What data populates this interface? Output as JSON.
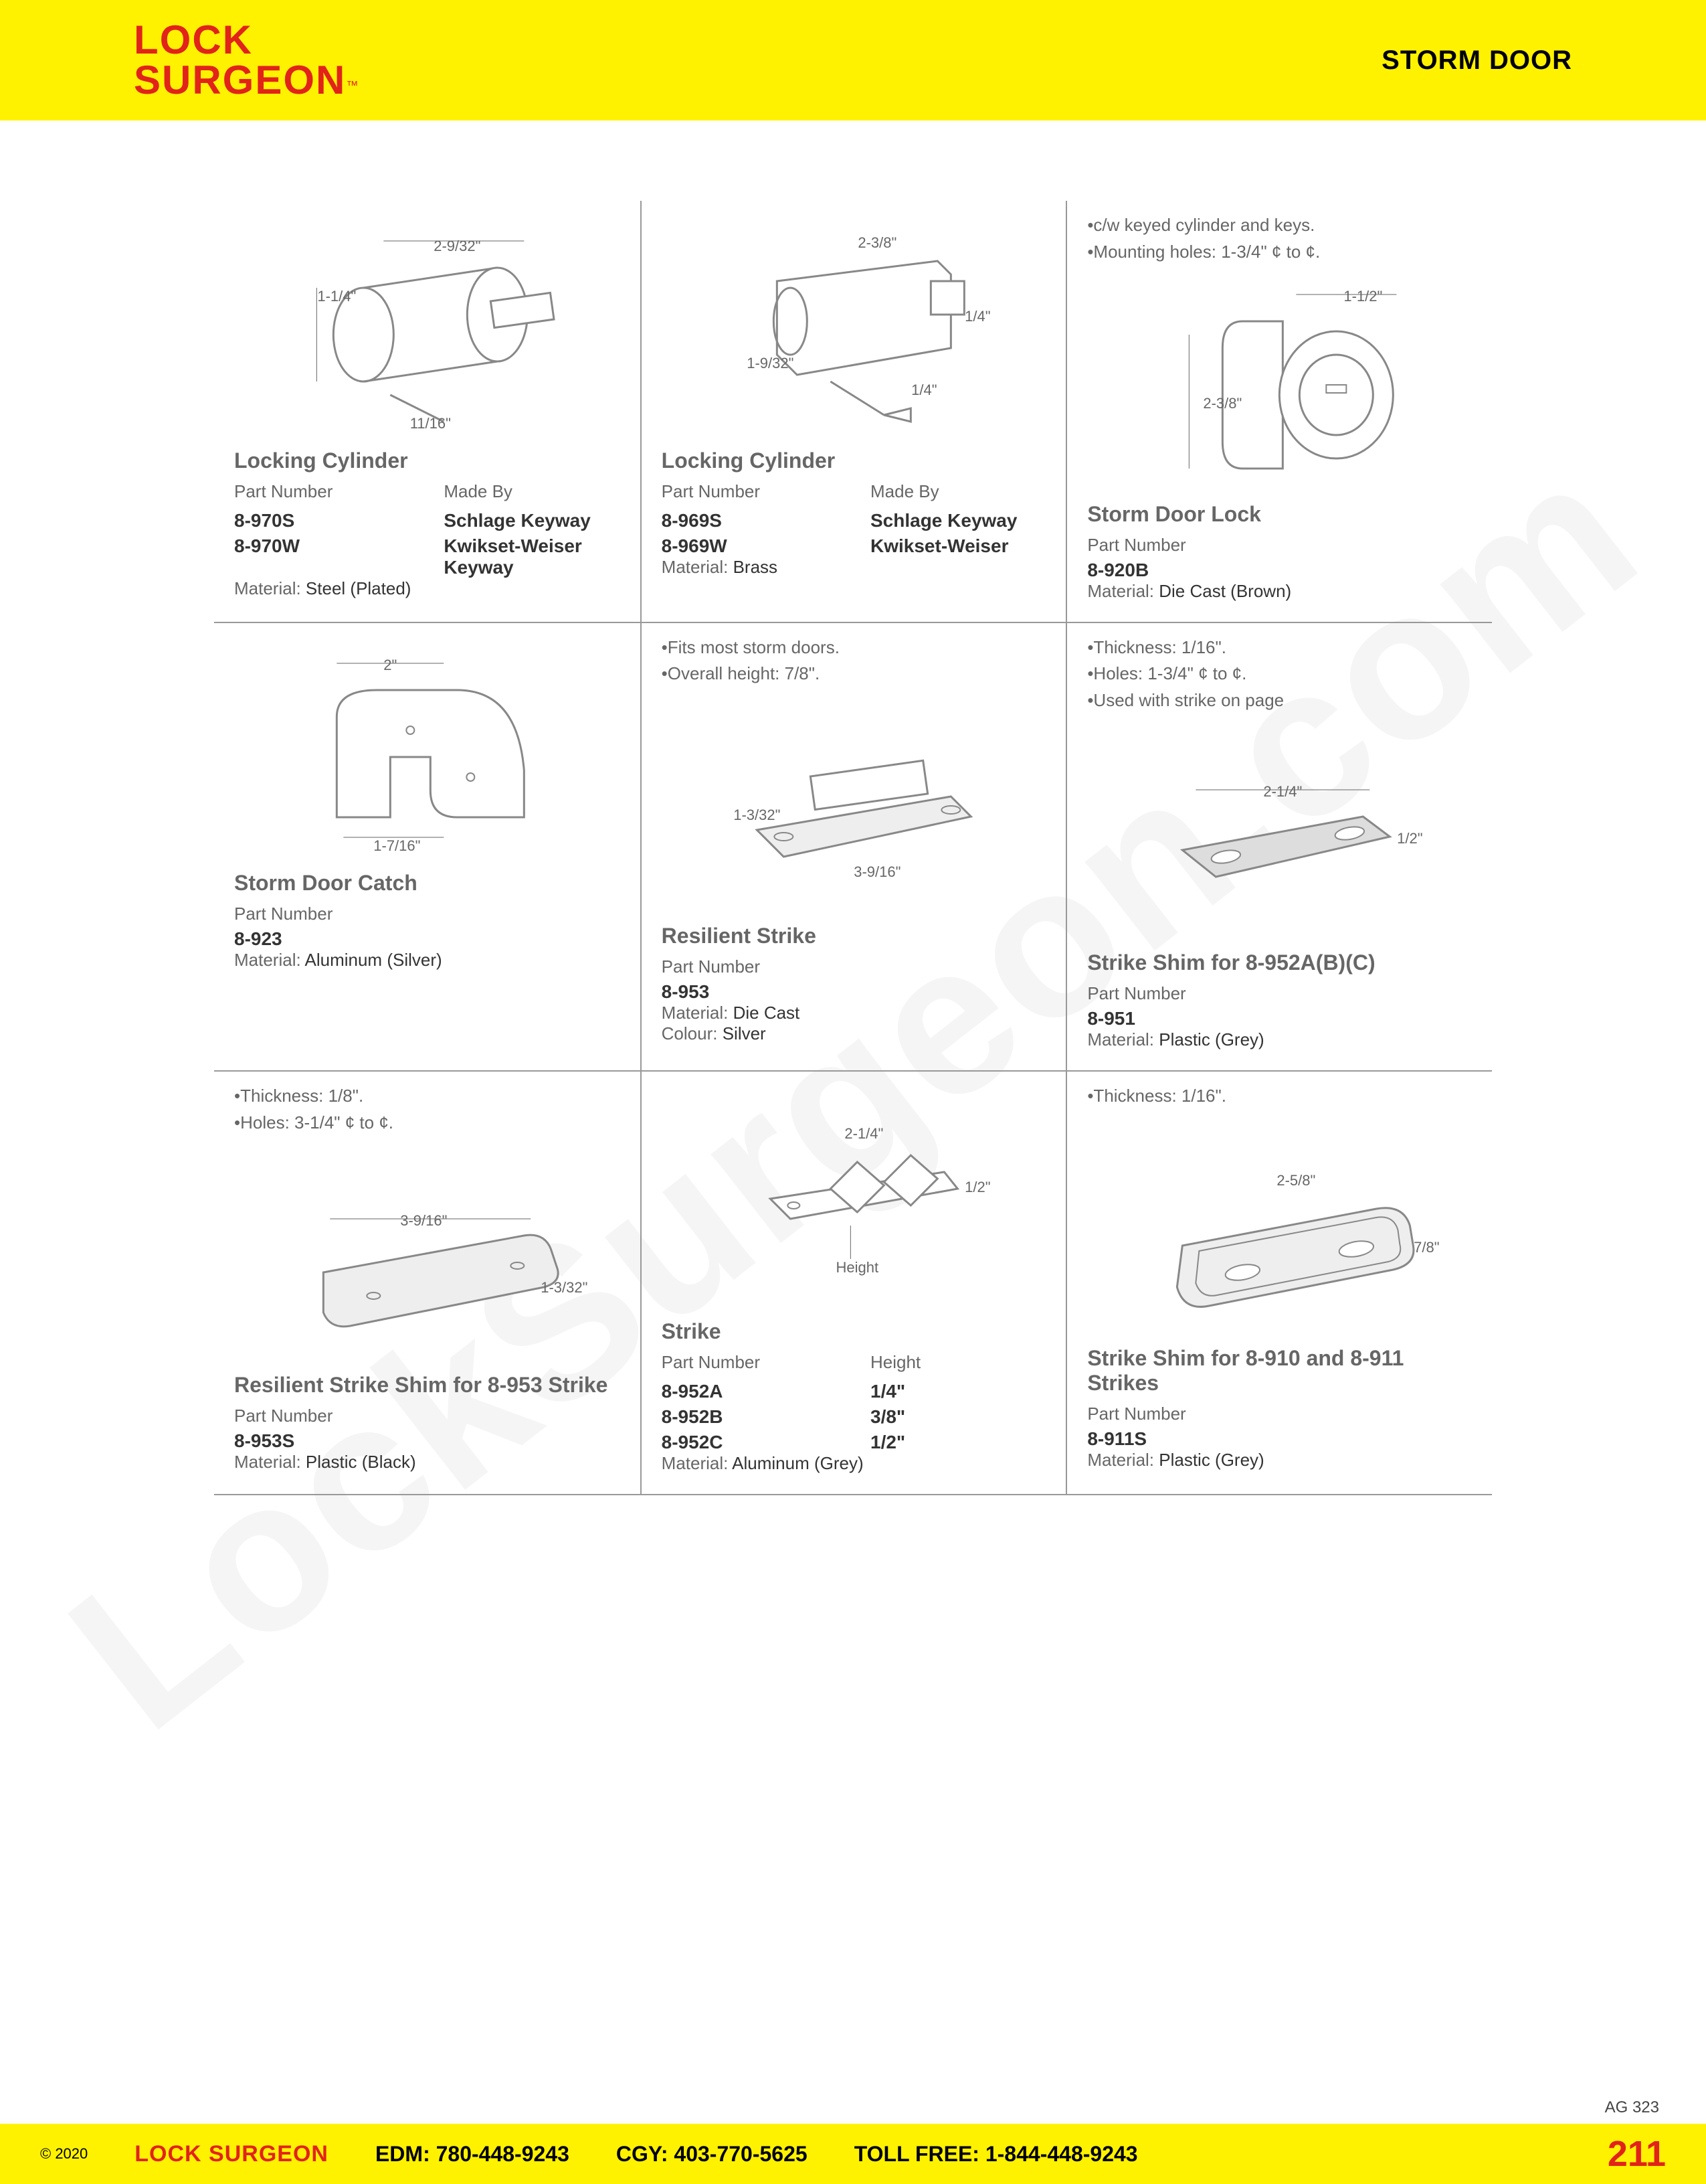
{
  "header": {
    "logo_line1": "LOCK",
    "logo_line2": "SURGEON",
    "tm": "™",
    "title": "STORM DOOR"
  },
  "watermark": "LockSurgeon.com",
  "products": [
    {
      "title": "Locking Cylinder",
      "notes": [],
      "dims": [
        "1-1/4\"",
        "2-9/32\"",
        "11/16\""
      ],
      "col_labels": [
        "Part Number",
        "Made By"
      ],
      "rows": [
        [
          "8-970S",
          "Schlage Keyway"
        ],
        [
          "8-970W",
          "Kwikset-Weiser Keyway"
        ]
      ],
      "material_label": "Material:",
      "material": "Steel (Plated)"
    },
    {
      "title": "Locking Cylinder",
      "notes": [],
      "dims": [
        "2-3/8\"",
        "1-9/32\"",
        "1/4\"",
        "1/4\""
      ],
      "col_labels": [
        "Part Number",
        "Made By"
      ],
      "rows": [
        [
          "8-969S",
          "Schlage Keyway"
        ],
        [
          "8-969W",
          "Kwikset-Weiser"
        ]
      ],
      "material_label": "Material:",
      "material": "Brass"
    },
    {
      "title": "Storm Door Lock",
      "notes": [
        "•c/w keyed cylinder and keys.",
        "•Mounting holes: 1-3/4\" ¢ to ¢."
      ],
      "dims": [
        "1-1/2\"",
        "2-3/8\""
      ],
      "col_labels": [
        "Part Number"
      ],
      "rows": [
        [
          "8-920B"
        ]
      ],
      "material_label": "Material:",
      "material": "Die Cast (Brown)"
    },
    {
      "title": "Storm Door Catch",
      "notes": [],
      "dims": [
        "2\"",
        "1-7/16\""
      ],
      "col_labels": [
        "Part Number"
      ],
      "rows": [
        [
          "8-923"
        ]
      ],
      "material_label": "Material:",
      "material": "Aluminum (Silver)"
    },
    {
      "title": "Resilient Strike",
      "notes": [
        "•Fits most storm doors.",
        "•Overall height: 7/8\"."
      ],
      "dims": [
        "1-3/32\"",
        "3-9/16\""
      ],
      "col_labels": [
        "Part Number"
      ],
      "rows": [
        [
          "8-953"
        ]
      ],
      "material_label": "Material:",
      "material": "Die Cast",
      "extra_label": "Colour:",
      "extra": "Silver"
    },
    {
      "title": "Strike Shim for 8-952A(B)(C)",
      "notes": [
        "•Thickness: 1/16\".",
        "•Holes: 1-3/4\" ¢ to ¢.",
        "•Used with strike on page"
      ],
      "dims": [
        "2-1/4\"",
        "1/2\""
      ],
      "col_labels": [
        "Part Number"
      ],
      "rows": [
        [
          "8-951"
        ]
      ],
      "material_label": "Material:",
      "material": "Plastic (Grey)"
    },
    {
      "title": "Resilient Strike Shim for 8-953 Strike",
      "notes": [
        "•Thickness: 1/8\".",
        "•Holes: 3-1/4\" ¢ to ¢."
      ],
      "dims": [
        "3-9/16\"",
        "1-3/32\""
      ],
      "col_labels": [
        "Part Number"
      ],
      "rows": [
        [
          "8-953S"
        ]
      ],
      "material_label": "Material:",
      "material": "Plastic (Black)"
    },
    {
      "title": "Strike",
      "notes": [],
      "dims": [
        "2-1/4\"",
        "1/2\"",
        "Height"
      ],
      "col_labels": [
        "Part Number",
        "Height"
      ],
      "rows": [
        [
          "8-952A",
          "1/4\""
        ],
        [
          "8-952B",
          "3/8\""
        ],
        [
          "8-952C",
          "1/2\""
        ]
      ],
      "material_label": "Material:",
      "material": "Aluminum (Grey)"
    },
    {
      "title": "Strike Shim for 8-910 and 8-911 Strikes",
      "notes": [
        "•Thickness: 1/16\"."
      ],
      "dims": [
        "2-5/8\"",
        "7/8\""
      ],
      "col_labels": [
        "Part Number"
      ],
      "rows": [
        [
          "8-911S"
        ]
      ],
      "material_label": "Material:",
      "material": "Plastic (Grey)"
    }
  ],
  "footer": {
    "copyright": "© 2020",
    "company": "LOCK SURGEON",
    "edm_label": "EDM:",
    "edm": "780-448-9243",
    "cgy_label": "CGY:",
    "cgy": "403-770-5625",
    "toll_label": "TOLL FREE:",
    "toll": "1-844-448-9243",
    "page": "211",
    "ag": "AG 323"
  },
  "colors": {
    "yellow": "#fff200",
    "red": "#e2231a",
    "gray_border": "#999999",
    "text_gray": "#666666",
    "text_dark": "#333333"
  }
}
